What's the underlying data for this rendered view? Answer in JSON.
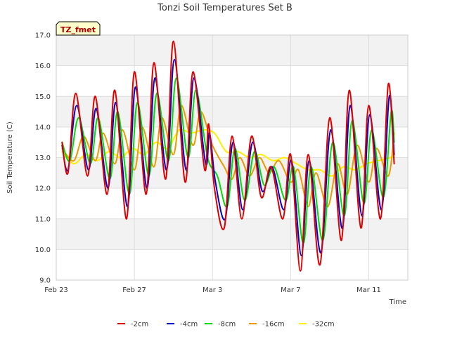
{
  "chart_data": {
    "type": "line",
    "title": "Tonzi Soil Temperatures Set B",
    "xlabel": "Time",
    "ylabel": "Soil Temperature (C)",
    "badge": "TZ_fmet",
    "grid": true,
    "legend_position": "bottom",
    "x_unit": "days",
    "xlim": [
      0,
      18.0
    ],
    "ylim": [
      9.0,
      17.0
    ],
    "x_ticks": [
      {
        "x": 0,
        "label": "Feb 23"
      },
      {
        "x": 4,
        "label": "Feb 27"
      },
      {
        "x": 8,
        "label": "Mar 3"
      },
      {
        "x": 12,
        "label": "Mar 7"
      },
      {
        "x": 16,
        "label": "Mar 11"
      }
    ],
    "y_ticks": [
      9.0,
      10.0,
      11.0,
      12.0,
      13.0,
      14.0,
      15.0,
      16.0,
      17.0
    ],
    "series": [
      {
        "name": "-2cm",
        "color": "#dd0000",
        "points": [
          [
            0.3,
            13.5
          ],
          [
            0.6,
            12.5
          ],
          [
            1.0,
            15.1
          ],
          [
            1.6,
            12.4
          ],
          [
            2.0,
            15.0
          ],
          [
            2.6,
            11.8
          ],
          [
            3.0,
            15.2
          ],
          [
            3.6,
            11.0
          ],
          [
            4.0,
            15.8
          ],
          [
            4.6,
            11.8
          ],
          [
            5.0,
            16.1
          ],
          [
            5.6,
            12.3
          ],
          [
            6.0,
            16.8
          ],
          [
            6.6,
            12.2
          ],
          [
            7.0,
            15.8
          ],
          [
            7.6,
            12.6
          ],
          [
            7.8,
            14.1
          ],
          [
            8.1,
            12.0
          ],
          [
            8.6,
            10.7
          ],
          [
            9.0,
            13.7
          ],
          [
            9.5,
            11.0
          ],
          [
            10.0,
            13.7
          ],
          [
            10.5,
            11.7
          ],
          [
            11.0,
            12.7
          ],
          [
            11.6,
            11.0
          ],
          [
            12.0,
            13.1
          ],
          [
            12.5,
            9.3
          ],
          [
            12.9,
            13.1
          ],
          [
            13.5,
            9.5
          ],
          [
            14.0,
            14.3
          ],
          [
            14.6,
            10.3
          ],
          [
            15.0,
            15.2
          ],
          [
            15.6,
            10.7
          ],
          [
            16.0,
            14.7
          ],
          [
            16.6,
            11.0
          ],
          [
            17.0,
            15.4
          ],
          [
            17.3,
            12.8
          ]
        ]
      },
      {
        "name": "-4cm",
        "color": "#0000cc",
        "points": [
          [
            0.3,
            13.4
          ],
          [
            0.6,
            12.6
          ],
          [
            1.05,
            14.7
          ],
          [
            1.65,
            12.6
          ],
          [
            2.05,
            14.6
          ],
          [
            2.65,
            12.0
          ],
          [
            3.05,
            14.8
          ],
          [
            3.65,
            11.4
          ],
          [
            4.05,
            15.3
          ],
          [
            4.65,
            12.0
          ],
          [
            5.05,
            15.6
          ],
          [
            5.65,
            12.6
          ],
          [
            6.05,
            16.2
          ],
          [
            6.65,
            12.6
          ],
          [
            7.05,
            15.6
          ],
          [
            7.65,
            12.8
          ],
          [
            7.85,
            13.8
          ],
          [
            8.15,
            12.2
          ],
          [
            8.65,
            11.0
          ],
          [
            9.05,
            13.5
          ],
          [
            9.55,
            11.3
          ],
          [
            10.05,
            13.5
          ],
          [
            10.55,
            11.9
          ],
          [
            11.05,
            12.7
          ],
          [
            11.65,
            11.3
          ],
          [
            12.05,
            12.9
          ],
          [
            12.55,
            9.8
          ],
          [
            12.95,
            12.9
          ],
          [
            13.55,
            9.9
          ],
          [
            14.05,
            13.9
          ],
          [
            14.65,
            10.7
          ],
          [
            15.05,
            14.7
          ],
          [
            15.65,
            11.1
          ],
          [
            16.05,
            14.4
          ],
          [
            16.65,
            11.3
          ],
          [
            17.05,
            15.0
          ],
          [
            17.3,
            13.1
          ]
        ]
      },
      {
        "name": "-8cm",
        "color": "#00dd00",
        "points": [
          [
            0.3,
            13.5
          ],
          [
            0.7,
            12.9
          ],
          [
            1.15,
            14.3
          ],
          [
            1.75,
            12.8
          ],
          [
            2.15,
            14.3
          ],
          [
            2.75,
            12.3
          ],
          [
            3.15,
            14.5
          ],
          [
            3.75,
            11.8
          ],
          [
            4.15,
            14.8
          ],
          [
            4.75,
            12.4
          ],
          [
            5.15,
            15.1
          ],
          [
            5.75,
            12.9
          ],
          [
            6.15,
            15.6
          ],
          [
            6.75,
            13.0
          ],
          [
            7.15,
            15.2
          ],
          [
            7.75,
            13.0
          ],
          [
            8.25,
            12.4
          ],
          [
            8.75,
            11.4
          ],
          [
            9.15,
            13.3
          ],
          [
            9.65,
            11.6
          ],
          [
            10.15,
            13.2
          ],
          [
            10.65,
            12.1
          ],
          [
            11.15,
            12.7
          ],
          [
            11.75,
            11.6
          ],
          [
            12.15,
            12.7
          ],
          [
            12.65,
            10.2
          ],
          [
            13.05,
            12.7
          ],
          [
            13.65,
            10.3
          ],
          [
            14.15,
            13.5
          ],
          [
            14.75,
            11.1
          ],
          [
            15.15,
            14.2
          ],
          [
            15.75,
            11.5
          ],
          [
            16.15,
            13.9
          ],
          [
            16.75,
            11.7
          ],
          [
            17.15,
            14.5
          ],
          [
            17.3,
            13.5
          ]
        ]
      },
      {
        "name": "-16cm",
        "color": "#ee9900",
        "points": [
          [
            0.3,
            13.3
          ],
          [
            0.9,
            12.9
          ],
          [
            1.4,
            13.7
          ],
          [
            2.0,
            12.9
          ],
          [
            2.4,
            13.8
          ],
          [
            3.0,
            12.8
          ],
          [
            3.4,
            13.9
          ],
          [
            4.0,
            12.6
          ],
          [
            4.4,
            14.0
          ],
          [
            5.0,
            12.7
          ],
          [
            5.4,
            14.3
          ],
          [
            6.0,
            13.1
          ],
          [
            6.4,
            14.7
          ],
          [
            7.0,
            13.4
          ],
          [
            7.4,
            14.5
          ],
          [
            8.0,
            13.4
          ],
          [
            8.6,
            12.7
          ],
          [
            9.0,
            12.3
          ],
          [
            9.4,
            13.0
          ],
          [
            9.9,
            12.4
          ],
          [
            10.4,
            13.0
          ],
          [
            10.9,
            12.5
          ],
          [
            11.4,
            12.9
          ],
          [
            12.0,
            12.2
          ],
          [
            12.4,
            12.6
          ],
          [
            12.9,
            11.4
          ],
          [
            13.3,
            12.5
          ],
          [
            13.9,
            11.4
          ],
          [
            14.4,
            12.8
          ],
          [
            14.9,
            11.8
          ],
          [
            15.4,
            13.4
          ],
          [
            16.0,
            12.2
          ],
          [
            16.4,
            13.3
          ],
          [
            17.0,
            12.4
          ],
          [
            17.3,
            13.8
          ]
        ]
      },
      {
        "name": "-32cm",
        "color": "#ffee00",
        "points": [
          [
            0.3,
            13.2
          ],
          [
            0.9,
            12.8
          ],
          [
            1.5,
            13.1
          ],
          [
            2.1,
            12.9
          ],
          [
            2.7,
            13.2
          ],
          [
            3.3,
            13.0
          ],
          [
            3.9,
            13.3
          ],
          [
            4.5,
            13.1
          ],
          [
            5.1,
            13.5
          ],
          [
            5.7,
            13.3
          ],
          [
            6.3,
            13.9
          ],
          [
            6.9,
            13.8
          ],
          [
            7.5,
            13.9
          ],
          [
            8.1,
            13.8
          ],
          [
            8.7,
            13.2
          ],
          [
            9.3,
            13.2
          ],
          [
            9.9,
            13.0
          ],
          [
            10.5,
            13.1
          ],
          [
            11.1,
            12.9
          ],
          [
            11.7,
            13.0
          ],
          [
            12.3,
            12.8
          ],
          [
            12.9,
            12.6
          ],
          [
            13.5,
            12.6
          ],
          [
            14.1,
            12.4
          ],
          [
            14.7,
            12.7
          ],
          [
            15.3,
            12.6
          ],
          [
            15.9,
            12.8
          ],
          [
            16.5,
            12.9
          ],
          [
            17.1,
            13.0
          ],
          [
            17.3,
            13.1
          ]
        ]
      }
    ]
  }
}
